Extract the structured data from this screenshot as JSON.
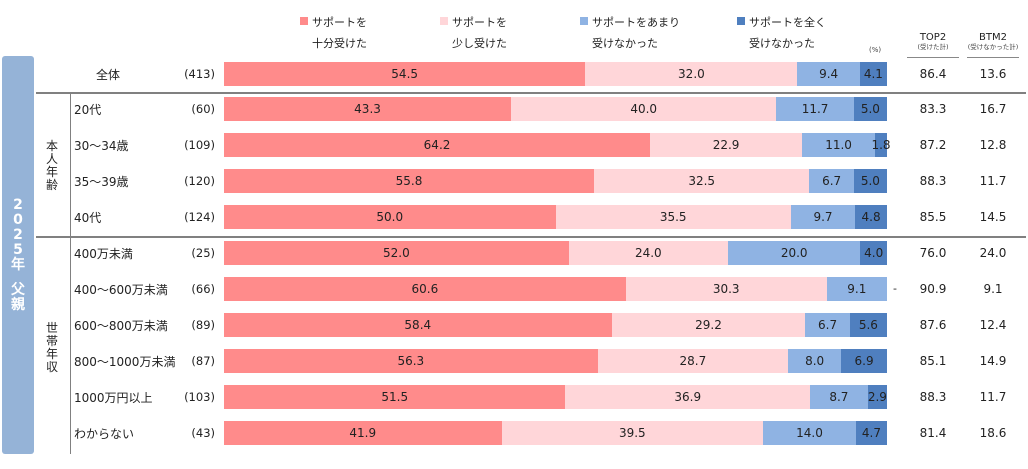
{
  "chart_data": {
    "type": "bar",
    "orientation": "horizontal-stacked-100",
    "unit": "(%)",
    "side_title": "2025年 父親",
    "legend": [
      {
        "name_line1": "サポートを",
        "name_line2": "十分受けた",
        "color": "#ff8b8b"
      },
      {
        "name_line1": "サポートを",
        "name_line2": "少し受けた",
        "color": "#ffd6d9"
      },
      {
        "name_line1": "サポートをあまり",
        "name_line2": "受けなかった",
        "color": "#8fb3e3"
      },
      {
        "name_line1": "サポートを全く",
        "name_line2": "受けなかった",
        "color": "#4f7fbf"
      }
    ],
    "summary_headers": {
      "top2": {
        "label": "TOP2",
        "sub": "(受けた計)"
      },
      "btm2": {
        "label": "BTM2",
        "sub": "(受けなかった計)"
      }
    },
    "groups": [
      {
        "label": "",
        "rows": [
          0
        ]
      },
      {
        "label": "本人年齢",
        "rows": [
          1,
          2,
          3,
          4
        ]
      },
      {
        "label": "世帯年収",
        "rows": [
          5,
          6,
          7,
          8,
          9,
          10
        ]
      }
    ],
    "rows": [
      {
        "label": "全体",
        "n": "(413)",
        "values": [
          54.5,
          32.0,
          9.4,
          4.1
        ],
        "labels": [
          "54.5",
          "32.0",
          "9.4",
          "4.1"
        ],
        "top2": "86.4",
        "btm2": "13.6"
      },
      {
        "label": "20代",
        "n": "(60)",
        "values": [
          43.3,
          40.0,
          11.7,
          5.0
        ],
        "labels": [
          "43.3",
          "40.0",
          "11.7",
          "5.0"
        ],
        "top2": "83.3",
        "btm2": "16.7"
      },
      {
        "label": "30～34歳",
        "n": "(109)",
        "values": [
          64.2,
          22.9,
          11.0,
          1.8
        ],
        "labels": [
          "64.2",
          "22.9",
          "11.0",
          "1.8"
        ],
        "top2": "87.2",
        "btm2": "12.8"
      },
      {
        "label": "35～39歳",
        "n": "(120)",
        "values": [
          55.8,
          32.5,
          6.7,
          5.0
        ],
        "labels": [
          "55.8",
          "32.5",
          "6.7",
          "5.0"
        ],
        "top2": "88.3",
        "btm2": "11.7"
      },
      {
        "label": "40代",
        "n": "(124)",
        "values": [
          50.0,
          35.5,
          9.7,
          4.8
        ],
        "labels": [
          "50.0",
          "35.5",
          "9.7",
          "4.8"
        ],
        "top2": "85.5",
        "btm2": "14.5"
      },
      {
        "label": "400万未満",
        "n": "(25)",
        "values": [
          52.0,
          24.0,
          20.0,
          4.0
        ],
        "labels": [
          "52.0",
          "24.0",
          "20.0",
          "4.0"
        ],
        "top2": "76.0",
        "btm2": "24.0"
      },
      {
        "label": "400～600万未満",
        "n": "(66)",
        "values": [
          60.6,
          30.3,
          9.1,
          0
        ],
        "labels": [
          "60.6",
          "30.3",
          "9.1",
          "-"
        ],
        "top2": "90.9",
        "btm2": "9.1"
      },
      {
        "label": "600～800万未満",
        "n": "(89)",
        "values": [
          58.4,
          29.2,
          6.7,
          5.6
        ],
        "labels": [
          "58.4",
          "29.2",
          "6.7",
          "5.6"
        ],
        "top2": "87.6",
        "btm2": "12.4"
      },
      {
        "label": "800～1000万未満",
        "n": "(87)",
        "values": [
          56.3,
          28.7,
          8.0,
          6.9
        ],
        "labels": [
          "56.3",
          "28.7",
          "8.0",
          "6.9"
        ],
        "top2": "85.1",
        "btm2": "14.9"
      },
      {
        "label": "1000万円以上",
        "n": "(103)",
        "values": [
          51.5,
          36.9,
          8.7,
          2.9
        ],
        "labels": [
          "51.5",
          "36.9",
          "8.7",
          "2.9"
        ],
        "top2": "88.3",
        "btm2": "11.7"
      },
      {
        "label": "わからない",
        "n": "(43)",
        "values": [
          41.9,
          39.5,
          14.0,
          4.7
        ],
        "labels": [
          "41.9",
          "39.5",
          "14.0",
          "4.7"
        ],
        "top2": "81.4",
        "btm2": "18.6"
      }
    ]
  }
}
